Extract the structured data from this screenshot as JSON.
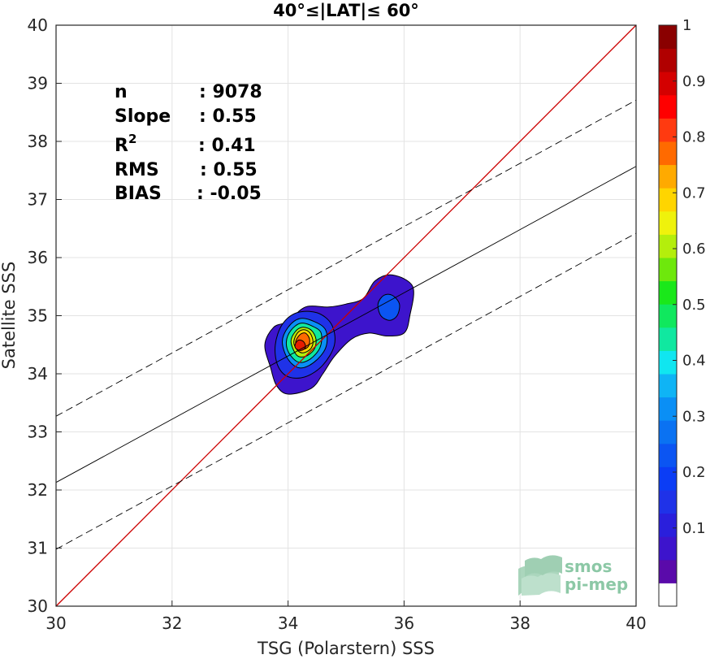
{
  "chart_data": {
    "type": "contour",
    "title": "40°≤|LAT|≤ 60°",
    "xlabel": "TSG (Polarstern) SSS",
    "ylabel": "Satellite SSS",
    "xlim": [
      30,
      40
    ],
    "ylim": [
      30,
      40
    ],
    "xticks": [
      "30",
      "32",
      "34",
      "36",
      "38",
      "40"
    ],
    "yticks": [
      "30",
      "31",
      "32",
      "33",
      "34",
      "35",
      "36",
      "37",
      "38",
      "39",
      "40"
    ],
    "grid": true,
    "stats": [
      {
        "label": "n",
        "sep": ": ",
        "value": "9078"
      },
      {
        "label": "Slope",
        "sep": ": ",
        "value": "0.55"
      },
      {
        "label": "R",
        "sup": "2",
        "sep": ": ",
        "value": "0.41"
      },
      {
        "label": "RMS",
        "sep": ": ",
        "value": "0.55"
      },
      {
        "label": "BIAS",
        "sep": ": ",
        "value": "-0.05"
      }
    ],
    "lines": {
      "identity": {
        "color": "#cc0000",
        "slope": 1,
        "intercept": 0
      },
      "fit": {
        "color": "#000000",
        "points": [
          [
            30,
            32.13
          ],
          [
            40,
            37.57
          ]
        ]
      },
      "fit_upper": {
        "color": "#000000",
        "dash": true,
        "points": [
          [
            30,
            33.27
          ],
          [
            40,
            38.71
          ]
        ]
      },
      "fit_lower": {
        "color": "#000000",
        "dash": true,
        "points": [
          [
            30,
            30.98
          ],
          [
            40,
            36.42
          ]
        ]
      }
    },
    "density_levels": [
      {
        "level": 0.05,
        "color": "#3d14cc",
        "polygon": [
          [
            34.0,
            34.9
          ],
          [
            34.3,
            35.15
          ],
          [
            34.7,
            35.15
          ],
          [
            35.0,
            35.2
          ],
          [
            35.3,
            35.3
          ],
          [
            35.5,
            35.6
          ],
          [
            35.8,
            35.7
          ],
          [
            36.15,
            35.5
          ],
          [
            36.1,
            35.0
          ],
          [
            36.0,
            34.7
          ],
          [
            35.7,
            34.65
          ],
          [
            35.4,
            34.7
          ],
          [
            35.1,
            34.6
          ],
          [
            34.8,
            34.3
          ],
          [
            34.6,
            34.0
          ],
          [
            34.4,
            33.75
          ],
          [
            34.0,
            33.65
          ],
          [
            33.8,
            33.8
          ],
          [
            33.7,
            34.1
          ],
          [
            33.6,
            34.5
          ],
          [
            33.75,
            34.8
          ]
        ]
      },
      {
        "level": 0.25,
        "color": "#0b55f2",
        "polygon": [
          [
            35.55,
            35.2
          ],
          [
            35.65,
            35.35
          ],
          [
            35.8,
            35.35
          ],
          [
            35.92,
            35.2
          ],
          [
            35.88,
            35.0
          ],
          [
            35.75,
            34.92
          ],
          [
            35.6,
            35.0
          ]
        ]
      },
      {
        "level": 0.15,
        "color": "#1f32e8",
        "polygon": [
          [
            33.78,
            34.5
          ],
          [
            33.9,
            34.85
          ],
          [
            34.15,
            35.05
          ],
          [
            34.5,
            35.05
          ],
          [
            34.75,
            34.85
          ],
          [
            34.8,
            34.5
          ],
          [
            34.6,
            34.15
          ],
          [
            34.3,
            33.95
          ],
          [
            34.0,
            33.95
          ],
          [
            33.82,
            34.15
          ]
        ]
      },
      {
        "level": 0.3,
        "color": "#0a8ff5",
        "polygon": [
          [
            33.9,
            34.55
          ],
          [
            34.0,
            34.8
          ],
          [
            34.2,
            34.95
          ],
          [
            34.45,
            34.9
          ],
          [
            34.65,
            34.75
          ],
          [
            34.65,
            34.45
          ],
          [
            34.45,
            34.2
          ],
          [
            34.2,
            34.1
          ],
          [
            34.0,
            34.25
          ]
        ]
      },
      {
        "level": 0.45,
        "color": "#10e8a0",
        "polygon": [
          [
            33.97,
            34.55
          ],
          [
            34.05,
            34.75
          ],
          [
            34.22,
            34.87
          ],
          [
            34.42,
            34.82
          ],
          [
            34.57,
            34.7
          ],
          [
            34.55,
            34.45
          ],
          [
            34.38,
            34.25
          ],
          [
            34.18,
            34.2
          ],
          [
            34.02,
            34.35
          ]
        ]
      },
      {
        "level": 0.6,
        "color": "#b4ee0c",
        "polygon": [
          [
            34.05,
            34.55
          ],
          [
            34.12,
            34.72
          ],
          [
            34.25,
            34.8
          ],
          [
            34.4,
            34.75
          ],
          [
            34.48,
            34.6
          ],
          [
            34.45,
            34.42
          ],
          [
            34.3,
            34.3
          ],
          [
            34.15,
            34.32
          ]
        ]
      },
      {
        "level": 0.7,
        "color": "#ffd500",
        "polygon": [
          [
            34.1,
            34.55
          ],
          [
            34.16,
            34.7
          ],
          [
            34.27,
            34.76
          ],
          [
            34.38,
            34.7
          ],
          [
            34.43,
            34.55
          ],
          [
            34.38,
            34.42
          ],
          [
            34.25,
            34.36
          ],
          [
            34.15,
            34.42
          ]
        ]
      },
      {
        "level": 0.8,
        "color": "#ff6a00",
        "polygon": [
          [
            34.13,
            34.55
          ],
          [
            34.2,
            34.67
          ],
          [
            34.3,
            34.7
          ],
          [
            34.37,
            34.6
          ],
          [
            34.35,
            34.47
          ],
          [
            34.25,
            34.42
          ],
          [
            34.17,
            34.47
          ]
        ]
      },
      {
        "level": 0.9,
        "color": "#e61c00",
        "polygon": [
          [
            34.12,
            34.5
          ],
          [
            34.18,
            34.58
          ],
          [
            34.27,
            34.55
          ],
          [
            34.3,
            34.45
          ],
          [
            34.22,
            34.4
          ],
          [
            34.14,
            34.43
          ]
        ]
      }
    ],
    "colorbar": {
      "ticks": [
        "0.1",
        "0.2",
        "0.3",
        "0.4",
        "0.5",
        "0.6",
        "0.7",
        "0.8",
        "0.9",
        "1"
      ],
      "colors": [
        "#ffffff",
        "#5a0aaa",
        "#3d14cc",
        "#2a1fdc",
        "#1f32e8",
        "#0b3df5",
        "#0b55f2",
        "#0a72f2",
        "#0a8ff5",
        "#0fb4f5",
        "#10e6f0",
        "#10e8a0",
        "#10e85e",
        "#1ae81a",
        "#6ee80c",
        "#b4ee0c",
        "#eff20c",
        "#ffd500",
        "#ffaa00",
        "#ff6a00",
        "#ff3a10",
        "#ff0000",
        "#d40000",
        "#b00000",
        "#8a0000"
      ]
    },
    "logo": {
      "line1": "smos",
      "line2": "pi-mep"
    }
  }
}
